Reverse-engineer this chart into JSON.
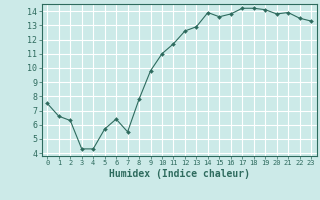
{
  "x": [
    0,
    1,
    2,
    3,
    4,
    5,
    6,
    7,
    8,
    9,
    10,
    11,
    12,
    13,
    14,
    15,
    16,
    17,
    18,
    19,
    20,
    21,
    22,
    23
  ],
  "y": [
    7.5,
    6.6,
    6.3,
    4.3,
    4.3,
    5.7,
    6.4,
    5.5,
    7.8,
    9.8,
    11.0,
    11.7,
    12.6,
    12.9,
    13.9,
    13.6,
    13.8,
    14.2,
    14.2,
    14.1,
    13.8,
    13.9,
    13.5,
    13.3
  ],
  "line_color": "#2e6b5e",
  "marker": "D",
  "marker_size": 2.0,
  "bg_color": "#cceae8",
  "grid_color": "#ffffff",
  "tick_color": "#2e6b5e",
  "xlabel": "Humidex (Indice chaleur)",
  "xlabel_fontsize": 7,
  "ylabel_ticks": [
    4,
    5,
    6,
    7,
    8,
    9,
    10,
    11,
    12,
    13,
    14
  ],
  "xlim": [
    -0.5,
    23.5
  ],
  "ylim": [
    3.8,
    14.5
  ]
}
